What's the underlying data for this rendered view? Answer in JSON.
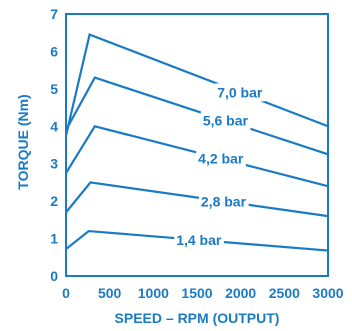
{
  "chart_data": {
    "type": "line",
    "title": "",
    "xlabel": "SPEED – RPM (OUTPUT)",
    "ylabel": "TORQUE (Nm)",
    "xlim": [
      0,
      3000
    ],
    "ylim": [
      0,
      7
    ],
    "x_ticks": [
      "0",
      "500",
      "1000",
      "1500",
      "2000",
      "2500",
      "3000"
    ],
    "y_ticks": [
      "0",
      "1",
      "2",
      "3",
      "4",
      "5",
      "6",
      "7"
    ],
    "grid": false,
    "line_color": "#1a7bc4",
    "series": [
      {
        "name": "7,0 bar",
        "points": [
          [
            0,
            3.75
          ],
          [
            270,
            6.45
          ],
          [
            3000,
            4.0
          ]
        ]
      },
      {
        "name": "5,6 bar",
        "points": [
          [
            0,
            3.9
          ],
          [
            330,
            5.3
          ],
          [
            3000,
            3.25
          ]
        ]
      },
      {
        "name": "4,2 bar",
        "points": [
          [
            0,
            2.75
          ],
          [
            330,
            4.0
          ],
          [
            3000,
            2.4
          ]
        ]
      },
      {
        "name": "2,8 bar",
        "points": [
          [
            0,
            1.7
          ],
          [
            280,
            2.5
          ],
          [
            3000,
            1.6
          ]
        ]
      },
      {
        "name": "1,4 bar",
        "points": [
          [
            0,
            0.72
          ],
          [
            260,
            1.2
          ],
          [
            3000,
            0.68
          ]
        ]
      }
    ]
  }
}
